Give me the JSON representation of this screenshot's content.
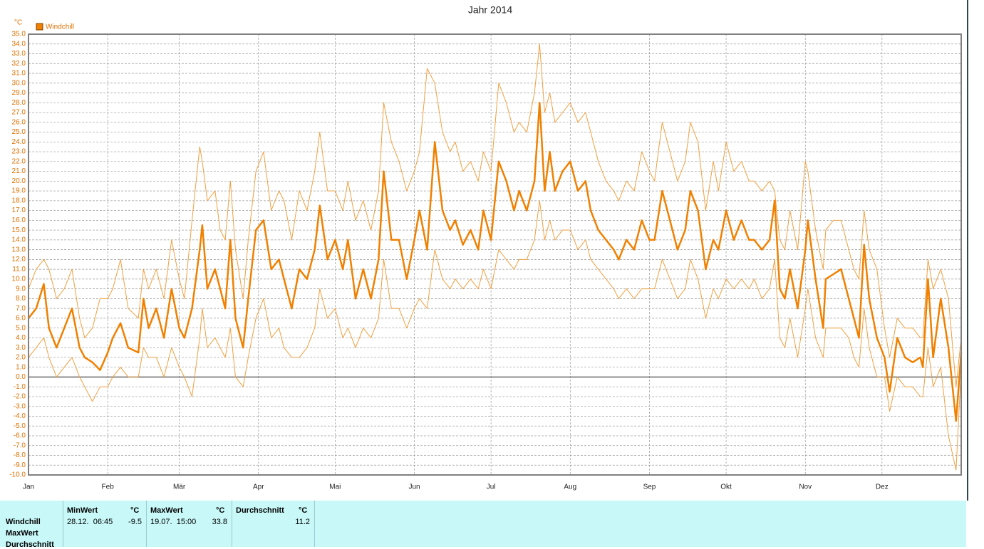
{
  "chart_data": {
    "type": "line",
    "title": "Jahr 2014",
    "y_unit": "°C",
    "xlim": [
      0,
      365
    ],
    "xticks": [
      {
        "value": 0,
        "label": "Jan"
      },
      {
        "value": 31,
        "label": "Feb"
      },
      {
        "value": 59,
        "label": "Mär"
      },
      {
        "value": 90,
        "label": "Apr"
      },
      {
        "value": 120,
        "label": "Mai"
      },
      {
        "value": 151,
        "label": "Jun"
      },
      {
        "value": 181,
        "label": "Jul"
      },
      {
        "value": 212,
        "label": "Aug"
      },
      {
        "value": 243,
        "label": "Sep"
      },
      {
        "value": 273,
        "label": "Okt"
      },
      {
        "value": 304,
        "label": "Nov"
      },
      {
        "value": 334,
        "label": "Dez"
      }
    ],
    "ylim": [
      -10,
      35
    ],
    "yticks": [
      {
        "value": -10,
        "label": "-10.0"
      },
      {
        "value": -9,
        "label": "-9.0"
      },
      {
        "value": -8,
        "label": "-8.0"
      },
      {
        "value": -7,
        "label": "-7.0"
      },
      {
        "value": -6,
        "label": "-6.0"
      },
      {
        "value": -5,
        "label": "-5.0"
      },
      {
        "value": -4,
        "label": "-4.0"
      },
      {
        "value": -3,
        "label": "-3.0"
      },
      {
        "value": -2,
        "label": "-2.0"
      },
      {
        "value": -1,
        "label": "-1.0"
      },
      {
        "value": 0,
        "label": "0.0"
      },
      {
        "value": 1,
        "label": "1.0"
      },
      {
        "value": 2,
        "label": "2.0"
      },
      {
        "value": 3,
        "label": "3.0"
      },
      {
        "value": 4,
        "label": "4.0"
      },
      {
        "value": 5,
        "label": "5.0"
      },
      {
        "value": 6,
        "label": "6.0"
      },
      {
        "value": 7,
        "label": "7.0"
      },
      {
        "value": 8,
        "label": "8.0"
      },
      {
        "value": 9,
        "label": "9.0"
      },
      {
        "value": 10,
        "label": "10.0"
      },
      {
        "value": 11,
        "label": "11.0"
      },
      {
        "value": 12,
        "label": "12.0"
      },
      {
        "value": 13,
        "label": "13.0"
      },
      {
        "value": 14,
        "label": "14.0"
      },
      {
        "value": 15,
        "label": "15.0"
      },
      {
        "value": 16,
        "label": "16.0"
      },
      {
        "value": 17,
        "label": "17.0"
      },
      {
        "value": 18,
        "label": "18.0"
      },
      {
        "value": 19,
        "label": "19.0"
      },
      {
        "value": 20,
        "label": "20.0"
      },
      {
        "value": 21,
        "label": "21.0"
      },
      {
        "value": 22,
        "label": "22.0"
      },
      {
        "value": 23,
        "label": "23.0"
      },
      {
        "value": 24,
        "label": "24.0"
      },
      {
        "value": 25,
        "label": "25.0"
      },
      {
        "value": 26,
        "label": "26.0"
      },
      {
        "value": 27,
        "label": "27.0"
      },
      {
        "value": 28,
        "label": "28.0"
      },
      {
        "value": 29,
        "label": "29.0"
      },
      {
        "value": 30,
        "label": "30.0"
      },
      {
        "value": 31,
        "label": "31.0"
      },
      {
        "value": 32,
        "label": "32.0"
      },
      {
        "value": 33,
        "label": "33.0"
      },
      {
        "value": 34,
        "label": "34.0"
      },
      {
        "value": 35,
        "label": "35.0"
      }
    ],
    "grid": true,
    "x": [
      0,
      3,
      6,
      8,
      11,
      14,
      17,
      20,
      22,
      25,
      28,
      31,
      33,
      36,
      39,
      43,
      45,
      47,
      50,
      53,
      56,
      59,
      61,
      64,
      67,
      68,
      70,
      73,
      75,
      77,
      79,
      81,
      84,
      86,
      89,
      92,
      95,
      98,
      100,
      103,
      106,
      109,
      112,
      114,
      117,
      120,
      123,
      125,
      128,
      131,
      134,
      137,
      139,
      142,
      145,
      148,
      151,
      153,
      156,
      159,
      162,
      165,
      167,
      170,
      173,
      176,
      178,
      181,
      184,
      187,
      190,
      192,
      195,
      198,
      200,
      202,
      204,
      206,
      209,
      212,
      215,
      218,
      220,
      223,
      226,
      229,
      231,
      234,
      237,
      240,
      243,
      245,
      248,
      251,
      254,
      257,
      259,
      262,
      265,
      268,
      270,
      273,
      276,
      279,
      282,
      284,
      287,
      290,
      292,
      294,
      296,
      298,
      301,
      304,
      305,
      308,
      311,
      312,
      315,
      318,
      321,
      323,
      325,
      327,
      329,
      332,
      335,
      337,
      340,
      343,
      346,
      349,
      350,
      352,
      354,
      357,
      360,
      363,
      365
    ],
    "series": [
      {
        "name": "Windchill",
        "color": "#f08000",
        "values": [
          6,
          7,
          9.5,
          5,
          3,
          5,
          7,
          3,
          2,
          1.5,
          0.7,
          2.5,
          4,
          5.5,
          3,
          2.5,
          8,
          5,
          7,
          4,
          9,
          5,
          4,
          7,
          13,
          15.5,
          9,
          11,
          9,
          7,
          14,
          6,
          3,
          8,
          15,
          16,
          11,
          12,
          10,
          7,
          11,
          10,
          13,
          17.5,
          12,
          14,
          11,
          14,
          8,
          11,
          8,
          12,
          21,
          14,
          14,
          10,
          14,
          17,
          13,
          24,
          17,
          15,
          16,
          13.5,
          15,
          13,
          17,
          14,
          22,
          20,
          17,
          19,
          17,
          20,
          28,
          19,
          23,
          19,
          21,
          22,
          19,
          20,
          17,
          15,
          14,
          13,
          12,
          14,
          13,
          16,
          14,
          14,
          19,
          16,
          13,
          15,
          19,
          17,
          11,
          14,
          13,
          17,
          14,
          16,
          14,
          14,
          13,
          14,
          18,
          9,
          8,
          11,
          7,
          13,
          16,
          10,
          5,
          10,
          10.5,
          11,
          8,
          6,
          4,
          13.5,
          8,
          4,
          2,
          -1.5,
          4,
          2,
          1.5,
          2,
          1,
          10,
          2,
          8,
          3,
          -4.5,
          2.5
        ]
      },
      {
        "color": "#f0a040",
        "values": [
          9,
          11,
          12,
          11,
          8,
          9,
          11,
          6,
          4,
          5,
          8,
          8,
          9,
          12,
          7,
          6,
          11,
          9,
          11,
          8,
          14,
          10,
          8,
          16,
          23.5,
          22,
          18,
          19,
          15,
          14,
          20,
          13,
          8,
          14,
          21,
          23,
          17,
          19,
          18,
          14,
          19,
          17,
          21,
          25,
          19,
          19,
          17,
          20,
          16,
          18,
          15,
          19,
          28,
          24,
          22,
          19,
          21,
          23,
          31.5,
          30,
          25,
          23,
          24,
          21,
          22,
          20,
          23,
          21,
          30,
          28,
          25,
          26,
          25,
          29,
          34,
          27,
          29,
          26,
          27,
          28,
          26,
          27,
          25,
          22,
          20,
          19,
          18,
          20,
          19,
          23,
          21,
          20,
          26,
          23,
          20,
          22,
          26,
          24,
          17,
          22,
          19,
          24,
          21,
          22,
          20,
          20,
          19,
          20,
          19,
          14,
          13,
          17,
          13,
          22,
          21,
          15,
          11,
          15,
          16,
          16,
          13,
          11,
          10,
          17,
          13,
          11,
          5,
          2,
          6,
          5,
          5,
          4,
          4,
          12,
          9,
          11,
          8,
          -1,
          4
        ]
      },
      {
        "color": "#f0a040",
        "values": [
          2,
          3,
          4,
          2,
          0,
          1,
          2,
          0,
          -1,
          -2.5,
          -1,
          -1,
          0,
          1,
          0,
          0,
          3,
          2,
          2,
          0,
          3,
          1,
          0,
          -2,
          4,
          7,
          3,
          4,
          3,
          2,
          5,
          0,
          -1,
          2,
          6,
          8,
          4,
          5,
          3,
          2,
          2,
          3,
          5,
          9,
          6,
          7,
          4,
          5,
          3,
          5,
          4,
          6,
          12,
          7,
          7,
          5,
          7,
          8,
          7,
          13,
          10,
          9,
          10,
          9,
          10,
          9,
          11,
          9,
          13,
          12,
          11,
          12,
          12,
          14,
          18,
          14,
          16,
          14,
          15,
          15,
          13,
          14,
          12,
          11,
          10,
          9,
          8,
          9,
          8,
          9,
          9,
          9,
          12,
          10,
          8,
          9,
          12,
          10,
          6,
          9,
          8,
          10,
          9,
          10,
          9,
          10,
          8,
          9,
          12,
          4,
          3,
          6,
          2,
          7,
          9,
          4,
          2,
          5,
          5,
          5,
          4,
          2,
          1,
          7,
          3,
          0,
          0,
          -3.5,
          0,
          -1,
          -1,
          -2,
          -2,
          3,
          -1,
          1,
          -6,
          -9.5,
          1
        ]
      }
    ]
  },
  "table": {
    "columns": [
      {
        "name": "MinWert",
        "unit": "°C"
      },
      {
        "name": "MaxWert",
        "unit": "°C"
      },
      {
        "name": "Durchschnitt",
        "unit": "°C"
      }
    ],
    "rows": [
      {
        "label": "Windchill",
        "cells": [
          {
            "time": "28.12.  06:45",
            "value": -9.5
          },
          {
            "time": "19.07.  15:00",
            "value": 33.8
          },
          {
            "value": 11.2
          }
        ]
      },
      {
        "label": "MaxWert"
      },
      {
        "label": "Durchschnitt"
      }
    ]
  }
}
